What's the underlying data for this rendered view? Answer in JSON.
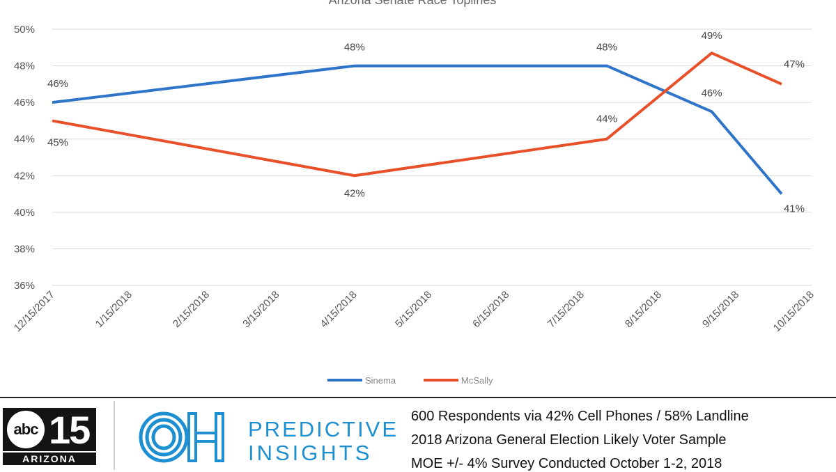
{
  "chart_data": {
    "type": "line",
    "title": "Arizona Senate Race Toplines",
    "x_ticks": [
      "12/15/2017",
      "1/15/2018",
      "2/15/2018",
      "3/15/2018",
      "4/15/2018",
      "5/15/2018",
      "6/15/2018",
      "7/15/2018",
      "8/15/2018",
      "9/15/2018",
      "10/15/2018"
    ],
    "y_ticks": [
      "50%",
      "48%",
      "46%",
      "44%",
      "42%",
      "40%",
      "38%",
      "36%"
    ],
    "ylim": [
      36,
      50
    ],
    "grid": true,
    "legend_position": "bottom",
    "series": [
      {
        "name": "Sinema",
        "color": "#2e75c9",
        "points": [
          {
            "x": "12/15/2017",
            "y": 46,
            "label": "46%"
          },
          {
            "x": "4/15/2018",
            "y": 48,
            "label": "48%"
          },
          {
            "x": "7/25/2018",
            "y": 48,
            "label": "48%"
          },
          {
            "x": "9/5/2018",
            "y": 45.5,
            "label": "46%"
          },
          {
            "x": "10/3/2018",
            "y": 41,
            "label": "41%"
          }
        ]
      },
      {
        "name": "McSally",
        "color": "#e8502a",
        "points": [
          {
            "x": "12/15/2017",
            "y": 45,
            "label": "45%"
          },
          {
            "x": "4/15/2018",
            "y": 42,
            "label": "42%"
          },
          {
            "x": "7/25/2018",
            "y": 44,
            "label": "44%"
          },
          {
            "x": "9/5/2018",
            "y": 48.7,
            "label": "49%"
          },
          {
            "x": "10/3/2018",
            "y": 47,
            "label": "47%"
          }
        ]
      }
    ]
  },
  "footer": {
    "station_number": "15",
    "station_logo_text": "abc",
    "station_region": "ARIZONA",
    "brand_line1": "PREDICTIVE",
    "brand_line2": "INSIGHTS",
    "brand_mark": "OH",
    "notes": [
      "600 Respondents via 42% Cell Phones / 58% Landline",
      "2018 Arizona General Election Likely Voter Sample",
      "MOE +/- 4% Survey Conducted October 1-2, 2018"
    ]
  }
}
